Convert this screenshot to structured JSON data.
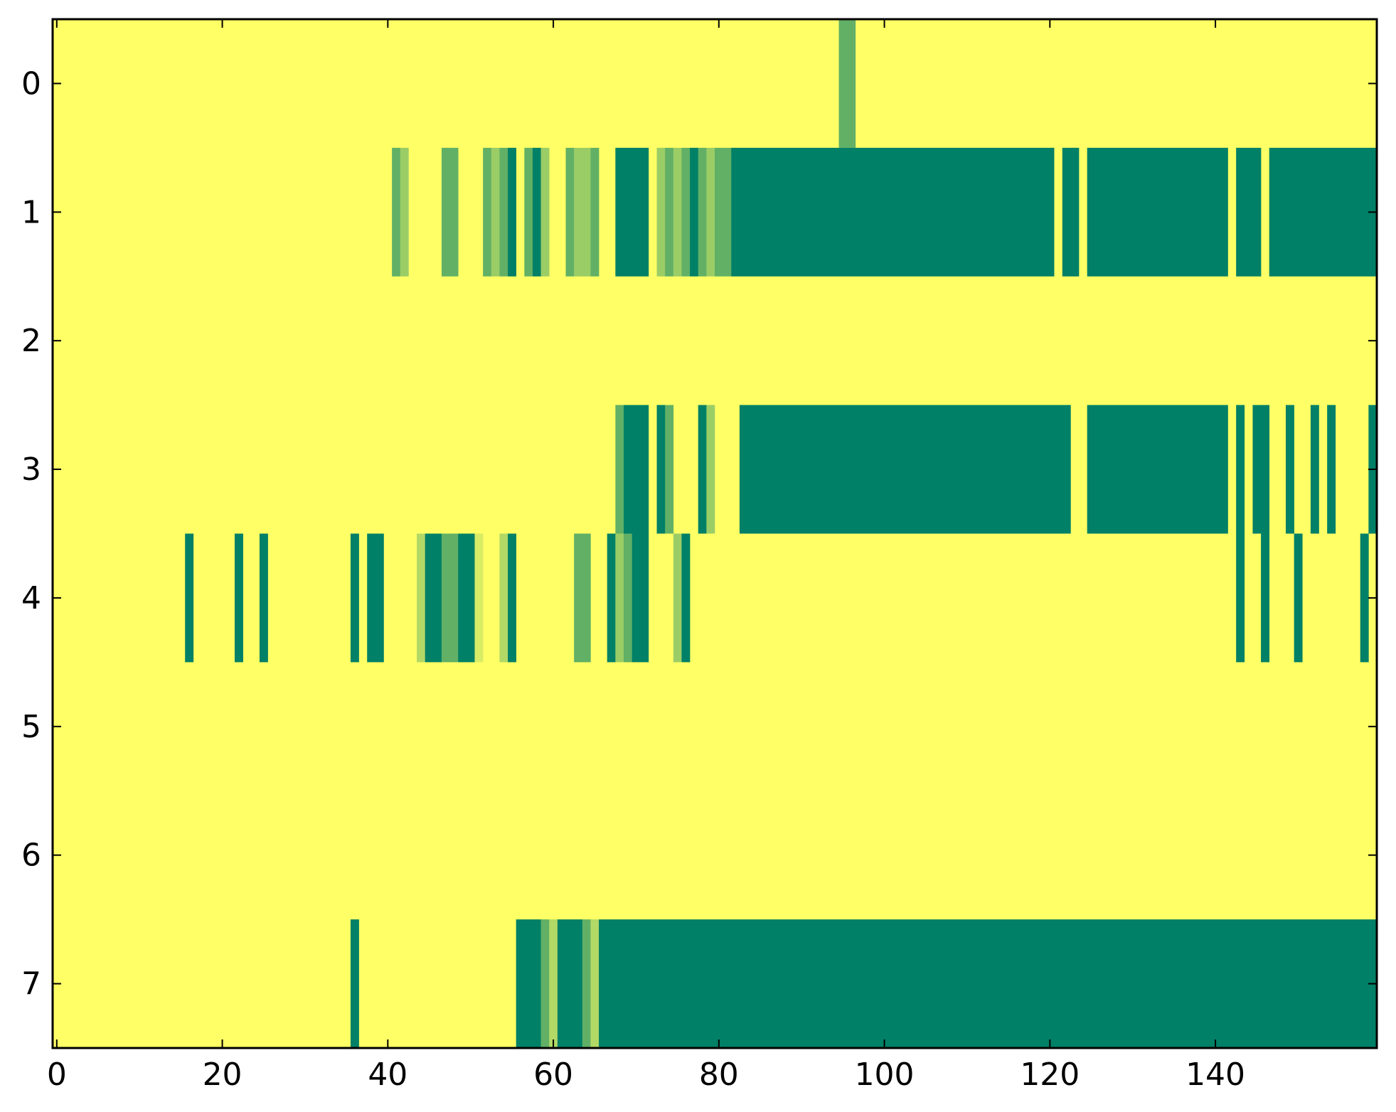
{
  "chart_data": {
    "type": "heatmap",
    "title": "",
    "xlabel": "",
    "ylabel": "",
    "xlim": [
      -0.5,
      159.5
    ],
    "ylim": [
      -0.5,
      7.5
    ],
    "y_inverted": true,
    "grid": false,
    "colormap": "summer_r",
    "colors": {
      "background": "#ffff66",
      "level_0": "#ffff66",
      "level_0_15": "#d9ec66",
      "level_0_3": "#b2d866",
      "level_0_45": "#9bcd66",
      "level_0_6": "#61b066",
      "level_1": "#008066",
      "axis": "#000000"
    },
    "x_ticks": [
      0,
      20,
      40,
      60,
      80,
      100,
      120,
      140
    ],
    "x_tick_labels": [
      "0",
      "20",
      "40",
      "60",
      "80",
      "100",
      "120",
      "140"
    ],
    "y_ticks": [
      0,
      1,
      2,
      3,
      4,
      5,
      6,
      7
    ],
    "y_tick_labels": [
      "0",
      "1",
      "2",
      "3",
      "4",
      "5",
      "6",
      "7"
    ],
    "n_columns": 160,
    "n_rows": 8,
    "default_value": 0,
    "rows": [
      {
        "row": 0,
        "segments": [
          [
            95,
            96,
            0.6
          ]
        ]
      },
      {
        "row": 1,
        "segments": [
          [
            41,
            41,
            0.6
          ],
          [
            42,
            42,
            0.45
          ],
          [
            47,
            48,
            0.6
          ],
          [
            52,
            52,
            0.6
          ],
          [
            53,
            53,
            0.45
          ],
          [
            54,
            54,
            0.6
          ],
          [
            55,
            55,
            1
          ],
          [
            57,
            57,
            0.6
          ],
          [
            58,
            58,
            1
          ],
          [
            59,
            59,
            0.45
          ],
          [
            62,
            62,
            0.6
          ],
          [
            63,
            64,
            0.45
          ],
          [
            65,
            65,
            0.6
          ],
          [
            68,
            71,
            1
          ],
          [
            73,
            73,
            0.45
          ],
          [
            74,
            74,
            0.6
          ],
          [
            75,
            75,
            0.45
          ],
          [
            76,
            76,
            0.6
          ],
          [
            77,
            77,
            1
          ],
          [
            78,
            78,
            0.6
          ],
          [
            79,
            79,
            0.45
          ],
          [
            80,
            81,
            0.6
          ],
          [
            82,
            120,
            1
          ],
          [
            122,
            123,
            1
          ],
          [
            125,
            141,
            1
          ],
          [
            143,
            145,
            1
          ],
          [
            147,
            159,
            1
          ]
        ]
      },
      {
        "row": 2,
        "segments": []
      },
      {
        "row": 3,
        "segments": [
          [
            68,
            68,
            0.6
          ],
          [
            69,
            71,
            1
          ],
          [
            73,
            73,
            1
          ],
          [
            74,
            74,
            0.6
          ],
          [
            78,
            78,
            1
          ],
          [
            79,
            79,
            0.45
          ],
          [
            83,
            122,
            1
          ],
          [
            125,
            141,
            1
          ],
          [
            143,
            143,
            1
          ],
          [
            145,
            146,
            1
          ],
          [
            149,
            149,
            1
          ],
          [
            152,
            152,
            1
          ],
          [
            154,
            154,
            1
          ],
          [
            159,
            159,
            1
          ]
        ]
      },
      {
        "row": 4,
        "segments": [
          [
            16,
            16,
            1
          ],
          [
            22,
            22,
            1
          ],
          [
            25,
            25,
            1
          ],
          [
            36,
            36,
            1
          ],
          [
            38,
            39,
            1
          ],
          [
            44,
            44,
            0.3
          ],
          [
            45,
            46,
            1
          ],
          [
            47,
            48,
            0.6
          ],
          [
            49,
            50,
            1
          ],
          [
            51,
            51,
            0.15
          ],
          [
            54,
            54,
            0.3
          ],
          [
            55,
            55,
            1
          ],
          [
            63,
            64,
            0.6
          ],
          [
            67,
            67,
            1
          ],
          [
            68,
            68,
            0.45
          ],
          [
            69,
            69,
            0.6
          ],
          [
            70,
            71,
            1
          ],
          [
            75,
            75,
            0.45
          ],
          [
            76,
            76,
            1
          ],
          [
            143,
            143,
            1
          ],
          [
            146,
            146,
            1
          ],
          [
            150,
            150,
            1
          ],
          [
            158,
            158,
            1
          ]
        ]
      },
      {
        "row": 5,
        "segments": []
      },
      {
        "row": 6,
        "segments": []
      },
      {
        "row": 7,
        "segments": [
          [
            36,
            36,
            1
          ],
          [
            56,
            58,
            1
          ],
          [
            59,
            59,
            0.6
          ],
          [
            60,
            60,
            0.3
          ],
          [
            61,
            63,
            1
          ],
          [
            64,
            64,
            0.6
          ],
          [
            65,
            65,
            0.3
          ],
          [
            66,
            159,
            1
          ]
        ]
      }
    ]
  }
}
